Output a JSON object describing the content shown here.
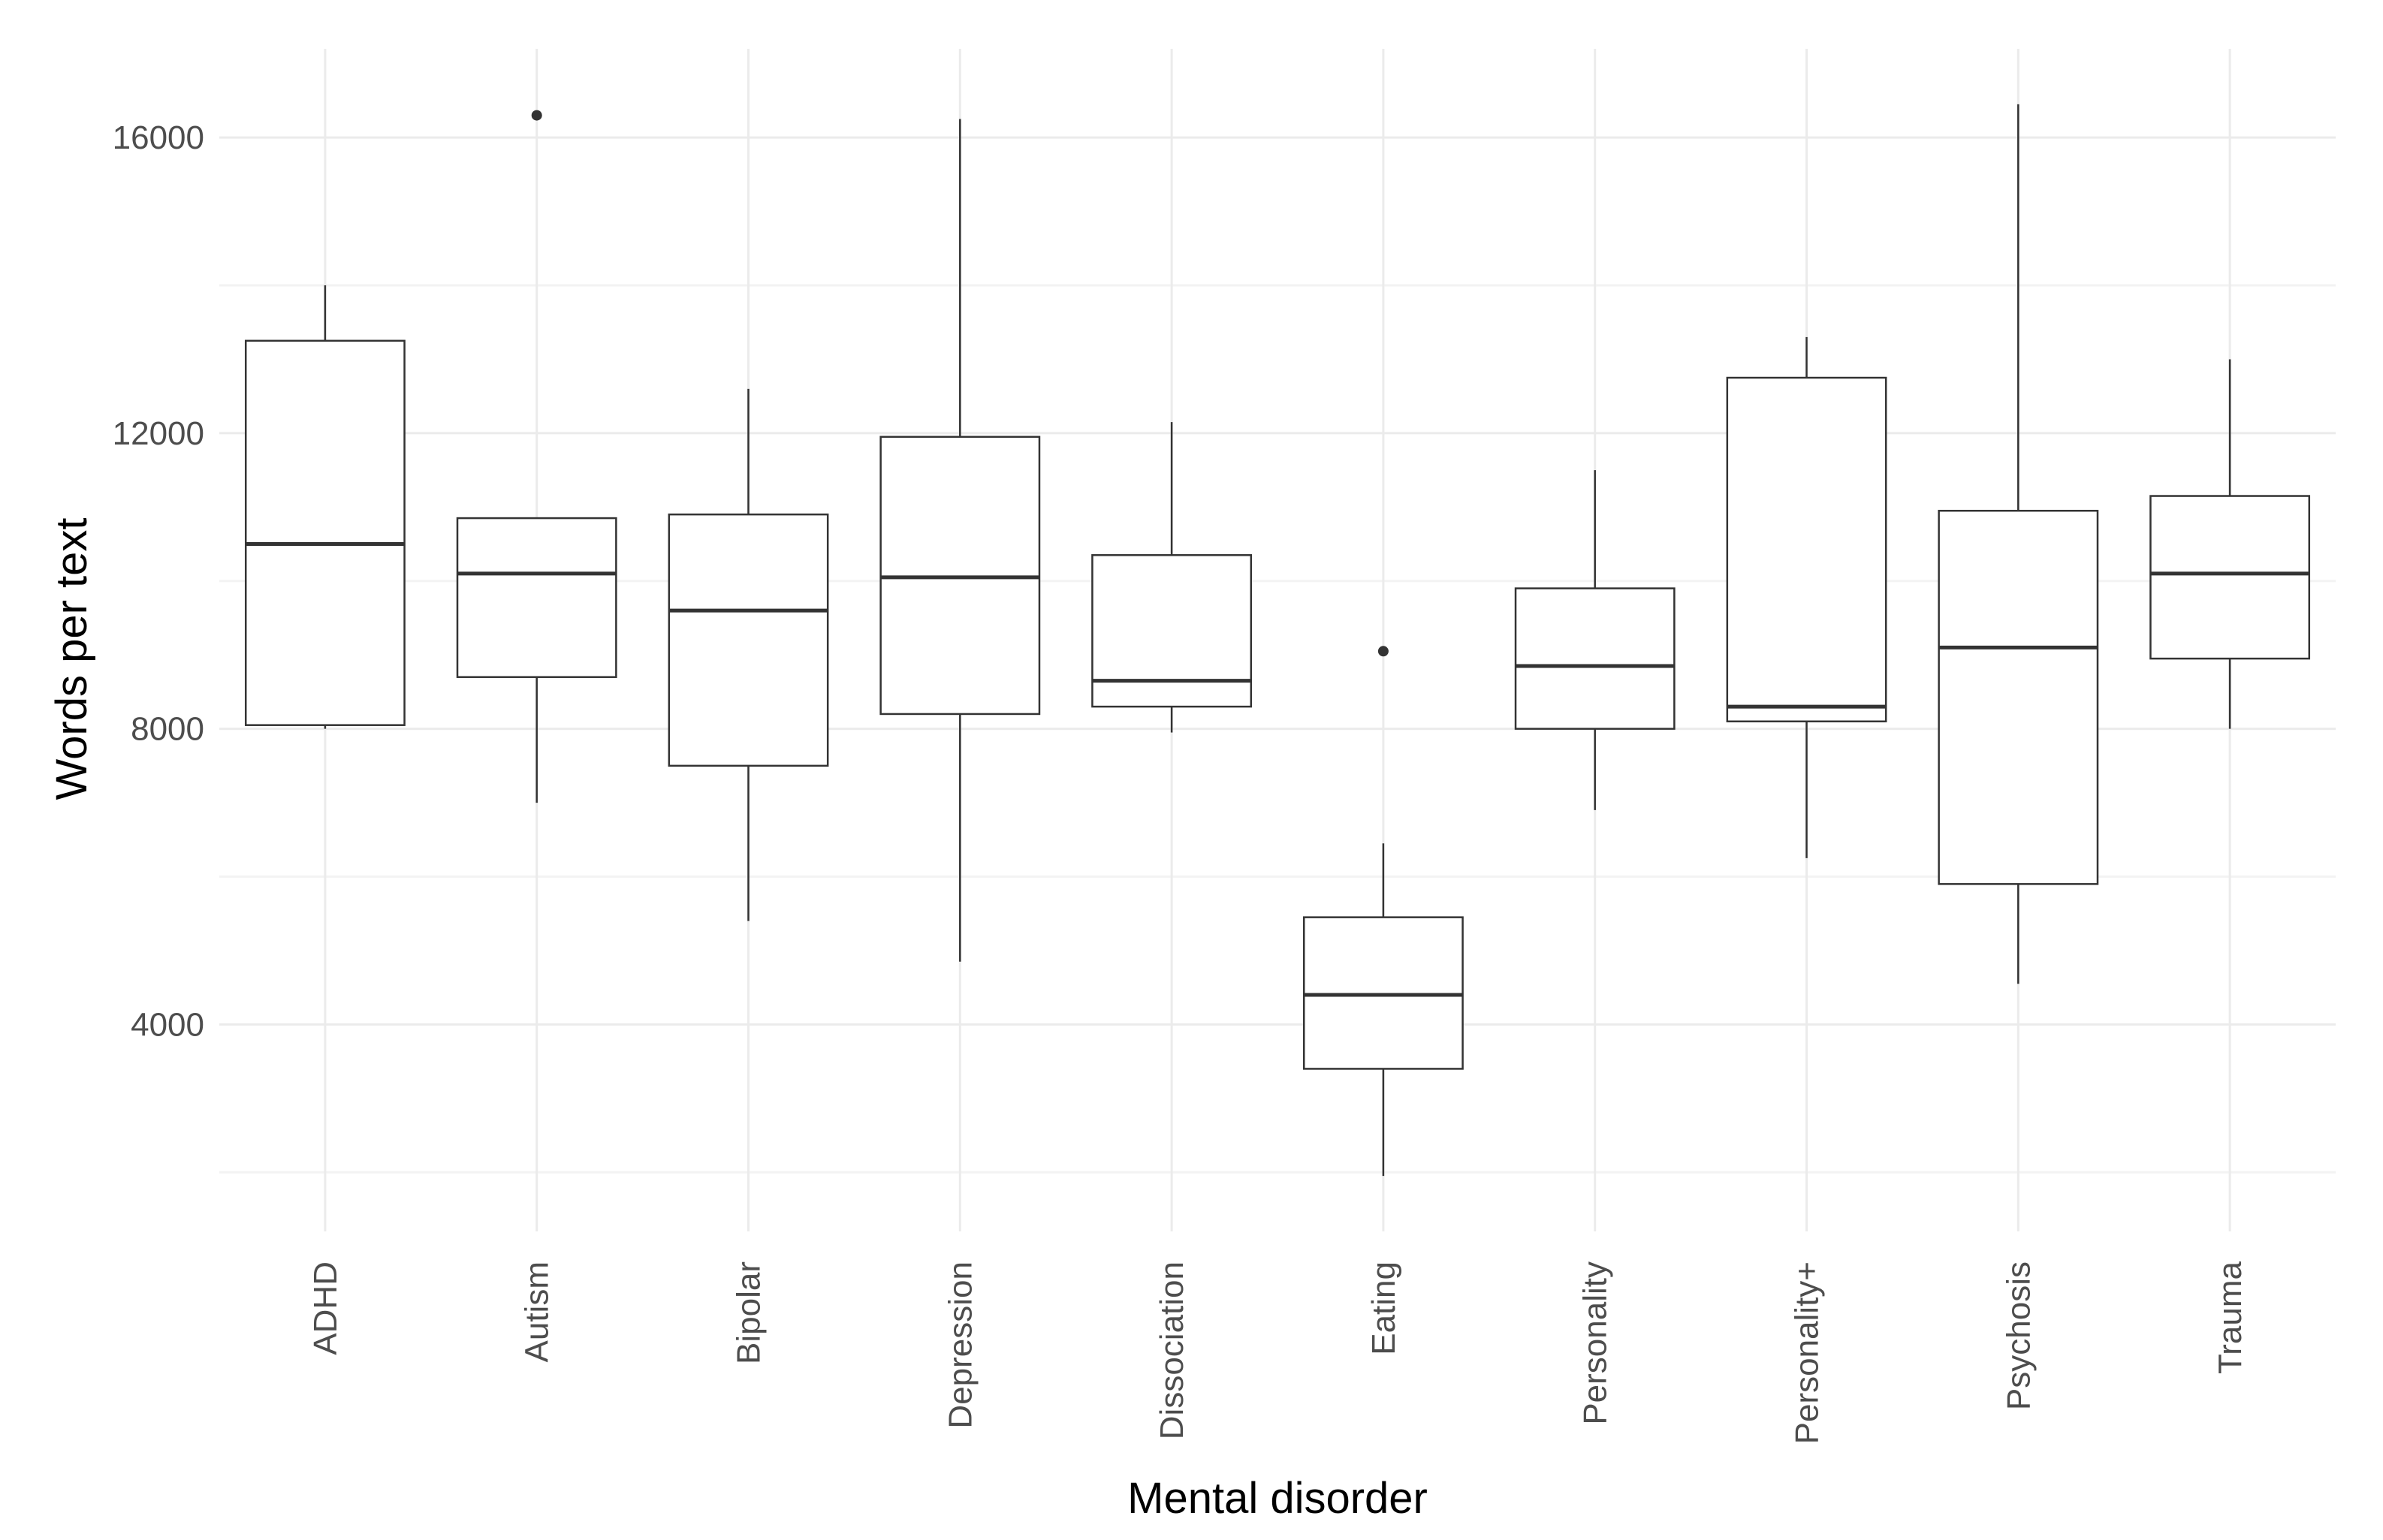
{
  "chart_data": {
    "type": "boxplot",
    "title": "",
    "xlabel": "Mental disorder",
    "ylabel": "Words per text",
    "ylim": [
      1200,
      17200
    ],
    "yticks": [
      4000,
      8000,
      12000,
      16000
    ],
    "yminor": [
      2000,
      6000,
      10000,
      14000
    ],
    "grid": true,
    "categories": [
      "ADHD",
      "Autism",
      "Bipolar",
      "Depression",
      "Dissociation",
      "Eating",
      "Personality",
      "Personality+",
      "Psychosis",
      "Trauma"
    ],
    "boxes": [
      {
        "name": "ADHD",
        "lower_whisker": 8000,
        "q1": 8050,
        "median": 10500,
        "q3": 13250,
        "upper_whisker": 14000,
        "outliers": []
      },
      {
        "name": "Autism",
        "lower_whisker": 7000,
        "q1": 8700,
        "median": 10100,
        "q3": 10850,
        "upper_whisker": 10850,
        "outliers": [
          16300
        ]
      },
      {
        "name": "Bipolar",
        "lower_whisker": 5400,
        "q1": 7500,
        "median": 9600,
        "q3": 10900,
        "upper_whisker": 12600,
        "outliers": []
      },
      {
        "name": "Depression",
        "lower_whisker": 4850,
        "q1": 8200,
        "median": 10050,
        "q3": 11950,
        "upper_whisker": 16250,
        "outliers": []
      },
      {
        "name": "Dissociation",
        "lower_whisker": 7950,
        "q1": 8300,
        "median": 8650,
        "q3": 10350,
        "upper_whisker": 12150,
        "outliers": []
      },
      {
        "name": "Eating",
        "lower_whisker": 1950,
        "q1": 3400,
        "median": 4400,
        "q3": 5450,
        "upper_whisker": 6450,
        "outliers": [
          9050
        ]
      },
      {
        "name": "Personality",
        "lower_whisker": 6900,
        "q1": 8000,
        "median": 8850,
        "q3": 9900,
        "upper_whisker": 11500,
        "outliers": []
      },
      {
        "name": "Personality+",
        "lower_whisker": 6250,
        "q1": 8100,
        "median": 8300,
        "q3": 12750,
        "upper_whisker": 13300,
        "outliers": []
      },
      {
        "name": "Psychosis",
        "lower_whisker": 4550,
        "q1": 5900,
        "median": 9100,
        "q3": 10950,
        "upper_whisker": 16450,
        "outliers": []
      },
      {
        "name": "Trauma",
        "lower_whisker": 8000,
        "q1": 8950,
        "median": 10100,
        "q3": 11150,
        "upper_whisker": 13000,
        "outliers": []
      }
    ],
    "colors": {
      "box_stroke": "#333333",
      "box_fill": "#ffffff",
      "grid": "#ebebeb",
      "outlier": "#333333"
    }
  }
}
